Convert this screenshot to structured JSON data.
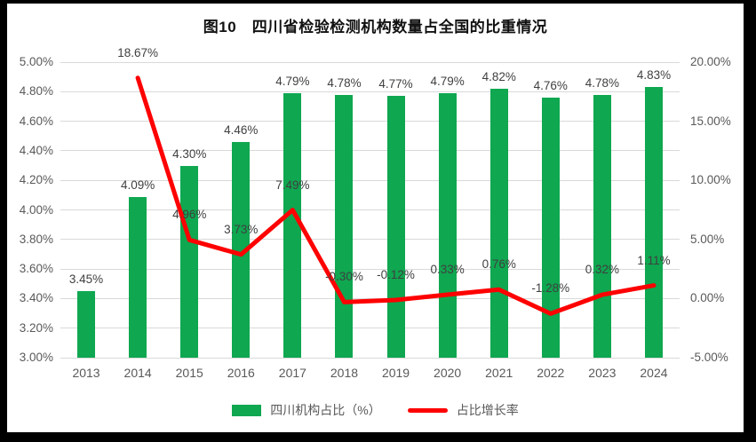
{
  "title": "图10　四川省检验检测机构数量占全国的比重情况",
  "chart_data": {
    "type": "combo_bar_line",
    "title": "图10　四川省检验检测机构数量占全国的比重情况",
    "categories": [
      "2013",
      "2014",
      "2015",
      "2016",
      "2017",
      "2018",
      "2019",
      "2020",
      "2021",
      "2022",
      "2023",
      "2024"
    ],
    "series": [
      {
        "name": "四川机构占比（%）",
        "type": "bar",
        "axis": "left",
        "color": "#0FA750",
        "values": [
          3.45,
          4.09,
          4.3,
          4.46,
          4.79,
          4.78,
          4.77,
          4.79,
          4.82,
          4.76,
          4.78,
          4.83
        ],
        "labels": [
          "3.45%",
          "4.09%",
          "4.30%",
          "4.46%",
          "4.79%",
          "4.78%",
          "4.77%",
          "4.79%",
          "4.82%",
          "4.76%",
          "4.78%",
          "4.83%"
        ]
      },
      {
        "name": "占比增长率",
        "type": "line",
        "axis": "right",
        "color": "#FF0000",
        "values": [
          null,
          18.67,
          4.96,
          3.73,
          7.49,
          -0.3,
          -0.12,
          0.33,
          0.76,
          -1.28,
          0.32,
          1.11
        ],
        "labels": [
          null,
          "18.67%",
          "4.96%",
          "3.73%",
          "7.49%",
          "-0.30%",
          "-0.12%",
          "0.33%",
          "0.76%",
          "-1.28%",
          "0.32%",
          "1.11%"
        ]
      }
    ],
    "left_axis": {
      "min": 3.0,
      "max": 5.0,
      "tick_labels": [
        "5.00%",
        "4.80%",
        "4.60%",
        "4.40%",
        "4.20%",
        "4.00%",
        "3.80%",
        "3.60%",
        "3.40%",
        "3.20%",
        "3.00%"
      ]
    },
    "right_axis": {
      "min": -5.0,
      "max": 20.0,
      "tick_labels": [
        "20.00%",
        "15.00%",
        "10.00%",
        "5.00%",
        "0.00%",
        "-5.00%"
      ]
    },
    "legend": [
      {
        "label": "四川机构占比（%）",
        "marker": "bar",
        "color": "#0FA750"
      },
      {
        "label": "占比增长率",
        "marker": "line",
        "color": "#FF0000"
      }
    ],
    "grid": true,
    "legend_position": "bottom"
  },
  "colors": {
    "bar_green": "#0FA750",
    "line_red": "#FF0000",
    "grid": "#D9D9D9",
    "axis_text": "#595959",
    "label_text": "#3F3F3F",
    "frame": "#000000"
  }
}
